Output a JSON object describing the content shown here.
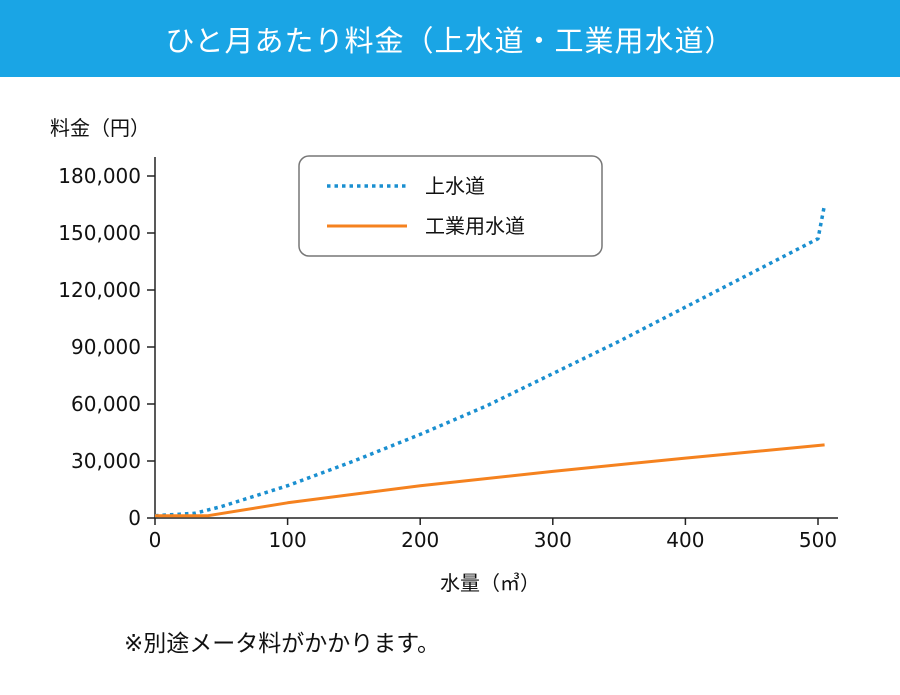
{
  "header": {
    "title": "ひと月あたり料金（上水道・工業用水道）"
  },
  "note": "※別途メータ料がかかります。",
  "colors": {
    "header_bg": "#1aa5e5",
    "water": "#1a8fd0",
    "industrial": "#f5821f"
  },
  "chart_data": {
    "type": "line",
    "ylabel": "料金（円）",
    "xlabel": "水量（㎥）",
    "xlim": [
      0,
      500
    ],
    "ylim": [
      0,
      180000
    ],
    "x_ticks": [
      0,
      100,
      200,
      300,
      400,
      500
    ],
    "y_ticks": [
      0,
      30000,
      60000,
      90000,
      120000,
      150000,
      180000
    ],
    "x_tick_labels": [
      "0",
      "100",
      "200",
      "300",
      "400",
      "500"
    ],
    "y_tick_labels": [
      "0",
      "30,000",
      "60,000",
      "90,000",
      "120,000",
      "150,000",
      "180,000"
    ],
    "legend_position": "top-center",
    "grid": false,
    "series": [
      {
        "name": "上水道",
        "style": "dotted",
        "color": "#1a8fd0",
        "points": [
          [
            0,
            1200
          ],
          [
            30,
            2500
          ],
          [
            50,
            6000
          ],
          [
            100,
            17000
          ],
          [
            150,
            30000
          ],
          [
            200,
            44000
          ],
          [
            250,
            59000
          ],
          [
            300,
            76000
          ],
          [
            350,
            93000
          ],
          [
            400,
            111000
          ],
          [
            450,
            129000
          ],
          [
            500,
            147000
          ],
          [
            505,
            165000
          ]
        ]
      },
      {
        "name": "工業用水道",
        "style": "solid",
        "color": "#f5821f",
        "points": [
          [
            0,
            1200
          ],
          [
            40,
            1200
          ],
          [
            100,
            8000
          ],
          [
            200,
            17000
          ],
          [
            300,
            24500
          ],
          [
            400,
            31500
          ],
          [
            505,
            38500
          ]
        ]
      }
    ]
  }
}
